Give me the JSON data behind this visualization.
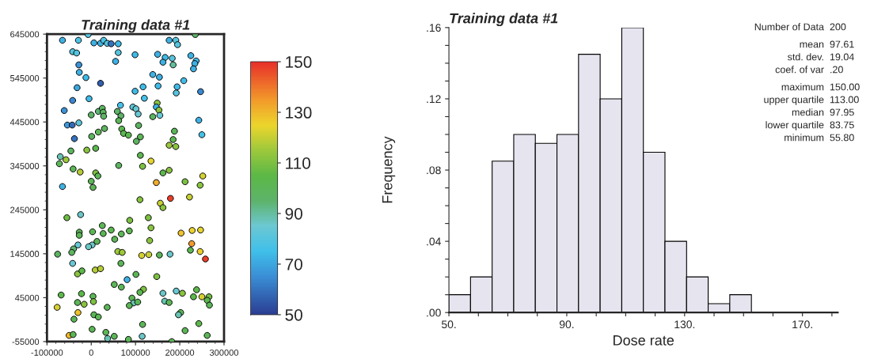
{
  "chart_data": [
    {
      "type": "scatter",
      "title": "Training data #1",
      "x": [
        -65000,
        -29000,
        -7000,
        6000,
        21000,
        28000,
        36000,
        45000,
        61000,
        61000,
        55000,
        99000,
        -42000,
        -33000,
        -28000,
        -27000,
        -12000,
        21000,
        -32000,
        -42000,
        -5000,
        -61000,
        -54000,
        -43000,
        -28000,
        -38000,
        0,
        16000,
        25000,
        27000,
        28000,
        30000,
        16000,
        1000,
        -46000,
        -70000,
        -72000,
        -57000,
        -41000,
        -25000,
        -10000,
        10000,
        10000,
        15000,
        0,
        -65000,
        4000,
        66000,
        59000,
        67000,
        62000,
        69000,
        73000,
        84000,
        94000,
        101000,
        106000,
        107000,
        111000,
        102000,
        99000,
        117000,
        120000,
        111000,
        116000,
        62000,
        135000,
        139000,
        154000,
        151000,
        150000,
        167000,
        162000,
        176000,
        191000,
        195000,
        183000,
        185000,
        149000,
        147000,
        153000,
        139000,
        155000,
        194000,
        192000,
        209000,
        235000,
        225000,
        237000,
        234000,
        231000,
        247000,
        243000,
        250000,
        188000,
        185000,
        176000,
        191000,
        176000,
        162000,
        147000,
        212000,
        252000,
        246000,
        110000,
        179000,
        222000,
        156000,
        162000,
        -55000,
        -24000,
        25000,
        -27000,
        -27000,
        3000,
        27000,
        45000,
        53000,
        68000,
        86000,
        87000,
        129000,
        135000,
        132000,
        13000,
        2000,
        -6000,
        -30000,
        -40000,
        -44000,
        -76000,
        60000,
        70000,
        114000,
        130000,
        154000,
        178000,
        -42000,
        -31000,
        -21000,
        9000,
        21000,
        67000,
        101000,
        81000,
        52000,
        68000,
        118000,
        110000,
        148000,
        162000,
        192000,
        206000,
        238000,
        224000,
        203000,
        228000,
        247000,
        227000,
        246000,
        258000,
        -68000,
        -77000,
        -31000,
        -22000,
        -16000,
        4000,
        5000,
        -30000,
        -39000,
        6000,
        16000,
        36000,
        92000,
        96000,
        105000,
        86000,
        166000,
        176000,
        231000,
        250000,
        266000,
        262000,
        267000,
        202000,
        197000,
        116000,
        243000,
        2000,
        33000,
        37000,
        52000,
        84000,
        115000,
        182000,
        212000,
        262000,
        -50000,
        -41000
      ],
      "values": [
        631000,
        631000,
        644000,
        625000,
        624000,
        631000,
        624000,
        623000,
        623000,
        603000,
        583000,
        598000,
        605000,
        602000,
        575000,
        558000,
        546000,
        533000,
        523000,
        494000,
        498000,
        471000,
        438000,
        438000,
        443000,
        407000,
        461000,
        469000,
        476000,
        467000,
        458000,
        430000,
        422000,
        412000,
        379000,
        366000,
        350000,
        359000,
        338000,
        331000,
        381000,
        385000,
        329000,
        322000,
        310000,
        298000,
        296000,
        483000,
        469000,
        459000,
        448000,
        429000,
        419000,
        415000,
        479000,
        475000,
        463000,
        437000,
        411000,
        401000,
        515000,
        525000,
        499000,
        369000,
        344000,
        346000,
        356000,
        553000,
        547000,
        527000,
        599000,
        592000,
        581000,
        631000,
        631000,
        621000,
        590000,
        575000,
        488000,
        479000,
        472000,
        457000,
        460000,
        525000,
        511000,
        539000,
        644000,
        596000,
        584000,
        578000,
        566000,
        514000,
        449000,
        416000,
        424000,
        405000,
        392000,
        389000,
        335000,
        329000,
        307000,
        309000,
        322000,
        301000,
        268000,
        271000,
        274000,
        260000,
        250000,
        227000,
        234000,
        209000,
        194000,
        187000,
        195000,
        191000,
        199000,
        178000,
        190000,
        197000,
        221000,
        227000,
        204000,
        175000,
        173000,
        165000,
        161000,
        165000,
        156000,
        148000,
        144000,
        150000,
        148000,
        141000,
        143000,
        142000,
        144000,
        123000,
        99000,
        106000,
        108000,
        111000,
        123000,
        98000,
        86000,
        75000,
        69000,
        64000,
        57000,
        93000,
        55000,
        60000,
        55000,
        63000,
        153000,
        192000,
        198000,
        199000,
        168000,
        150000,
        133000,
        51000,
        23000,
        34000,
        54000,
        30000,
        48000,
        36000,
        11000,
        -4000,
        6000,
        1000,
        23000,
        44000,
        33000,
        35000,
        27000,
        37000,
        34000,
        47000,
        47000,
        47000,
        39000,
        28000,
        11000,
        6000,
        -16000,
        -14000,
        -27000,
        -34000,
        -48000,
        -43000,
        -50000,
        -43000,
        -55000,
        -30000,
        -41000,
        -41000,
        -39000
      ],
      "cvalues": [
        72,
        78,
        80,
        72,
        72,
        78,
        80,
        60,
        74,
        80,
        72,
        74,
        80,
        80,
        66,
        72,
        74,
        56,
        70,
        64,
        74,
        66,
        67,
        58,
        82,
        60,
        96,
        94,
        98,
        98,
        96,
        98,
        100,
        98,
        98,
        88,
        100,
        115,
        100,
        118,
        112,
        102,
        110,
        100,
        100,
        72,
        100,
        76,
        96,
        96,
        100,
        102,
        102,
        102,
        82,
        84,
        84,
        98,
        100,
        98,
        74,
        74,
        76,
        102,
        110,
        98,
        124,
        72,
        72,
        74,
        72,
        74,
        72,
        72,
        80,
        80,
        80,
        90,
        112,
        72,
        112,
        98,
        84,
        74,
        80,
        74,
        96,
        72,
        74,
        72,
        72,
        64,
        72,
        76,
        100,
        102,
        115,
        112,
        112,
        102,
        132,
        110,
        122,
        112,
        112,
        148,
        120,
        120,
        112,
        108,
        86,
        100,
        100,
        100,
        100,
        100,
        102,
        100,
        100,
        102,
        110,
        110,
        112,
        112,
        100,
        86,
        86,
        84,
        94,
        98,
        98,
        115,
        115,
        122,
        120,
        100,
        86,
        84,
        112,
        104,
        118,
        118,
        100,
        100,
        72,
        100,
        100,
        110,
        102,
        110,
        86,
        84,
        112,
        104,
        102,
        128,
        125,
        124,
        135,
        126,
        148,
        104,
        122,
        100,
        104,
        112,
        100,
        110,
        128,
        100,
        100,
        100,
        100,
        100,
        88,
        100,
        100,
        88,
        100,
        104,
        122,
        108,
        102,
        100,
        100,
        88,
        100,
        104,
        100,
        100,
        88,
        100,
        100,
        86,
        100,
        100,
        100,
        130,
        100
      ],
      "xlim": [
        -100000,
        300000
      ],
      "ylim": [
        -55000,
        645000
      ],
      "xticks": [
        -100000,
        0,
        100000,
        200000,
        300000
      ],
      "yticks": [
        -55000,
        45000,
        145000,
        245000,
        345000,
        445000,
        545000,
        645000
      ],
      "clim": [
        50,
        150
      ],
      "cticks": [
        50,
        70,
        90,
        110,
        130,
        150
      ],
      "marker": "circle"
    },
    {
      "type": "histogram",
      "title": "Training data #1",
      "xlabel": "Dose rate",
      "ylabel": "Frequency",
      "color": "#e6e4ee",
      "bins": [
        50,
        57.33,
        64.67,
        72,
        79.33,
        86.67,
        94,
        101.33,
        108.67,
        116,
        123.33,
        130.67,
        138,
        145.33,
        152.67
      ],
      "values": [
        0.01,
        0.02,
        0.085,
        0.1,
        0.095,
        0.1,
        0.145,
        0.12,
        0.16,
        0.09,
        0.04,
        0.02,
        0.005,
        0.01
      ],
      "xlim": [
        50,
        182
      ],
      "ylim": [
        0,
        0.16
      ],
      "xticks": [
        {
          "value": 50,
          "label": "50."
        },
        {
          "value": 60,
          "label": null
        },
        {
          "value": 70,
          "label": null
        },
        {
          "value": 80,
          "label": null
        },
        {
          "value": 90,
          "label": "90."
        },
        {
          "value": 100,
          "label": null
        },
        {
          "value": 110,
          "label": null
        },
        {
          "value": 120,
          "label": null
        },
        {
          "value": 130,
          "label": "130."
        },
        {
          "value": 140,
          "label": null
        },
        {
          "value": 150,
          "label": null
        },
        {
          "value": 160,
          "label": null
        },
        {
          "value": 170,
          "label": "170."
        },
        {
          "value": 180,
          "label": null
        }
      ],
      "yticks": [
        {
          "value": 0,
          "label": ".00"
        },
        {
          "value": 0.01,
          "label": null
        },
        {
          "value": 0.02,
          "label": null
        },
        {
          "value": 0.03,
          "label": null
        },
        {
          "value": 0.04,
          "label": ".04"
        },
        {
          "value": 0.05,
          "label": null
        },
        {
          "value": 0.06,
          "label": null
        },
        {
          "value": 0.07,
          "label": null
        },
        {
          "value": 0.08,
          "label": ".08"
        },
        {
          "value": 0.09,
          "label": null
        },
        {
          "value": 0.1,
          "label": null
        },
        {
          "value": 0.11,
          "label": null
        },
        {
          "value": 0.12,
          "label": ".12"
        },
        {
          "value": 0.13,
          "label": null
        },
        {
          "value": 0.14,
          "label": null
        },
        {
          "value": 0.15,
          "label": null
        },
        {
          "value": 0.16,
          "label": ".16"
        }
      ],
      "annotations": [
        "Number of Data",
        "200",
        "mean",
        "97.61",
        "std. dev.",
        "19.04",
        "coef. of var",
        ".20",
        "maximum",
        "150.00",
        "upper quartile",
        "113.00",
        "median",
        "97.95",
        "lower quartile",
        "83.75",
        "minimum",
        "55.80"
      ]
    }
  ]
}
